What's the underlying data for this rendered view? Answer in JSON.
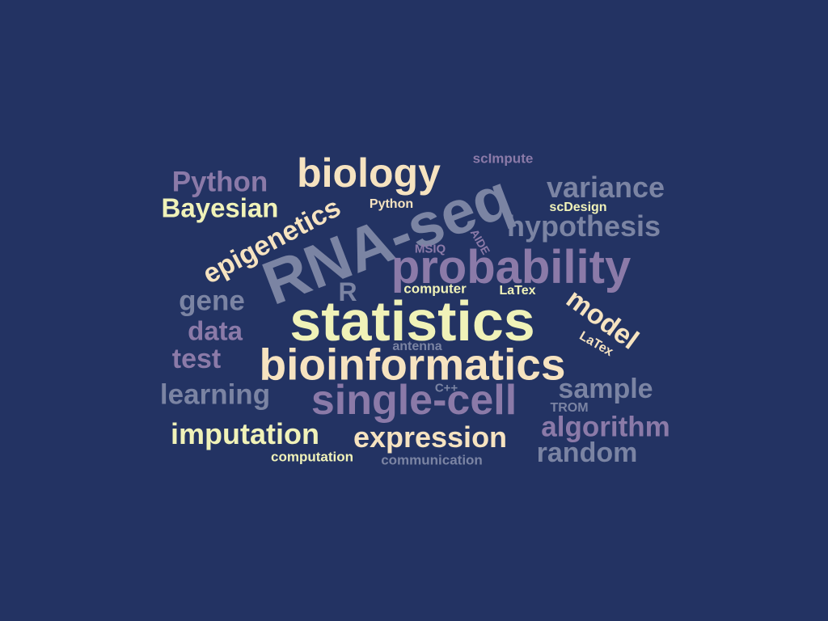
{
  "word_cloud": {
    "background": "#233363",
    "palette": [
      "#f0f2b8",
      "#f6e3c0",
      "#8b7aa8",
      "#7b84a3"
    ],
    "words": [
      {
        "id": "scimpute",
        "text": "scImpute"
      },
      {
        "id": "biology",
        "text": "biology"
      },
      {
        "id": "python-large",
        "text": "Python"
      },
      {
        "id": "variance",
        "text": "variance"
      },
      {
        "id": "bayesian",
        "text": "Bayesian"
      },
      {
        "id": "epigenetics",
        "text": "epigenetics"
      },
      {
        "id": "python-small",
        "text": "Python"
      },
      {
        "id": "rna-seq",
        "text": "RNA-seq"
      },
      {
        "id": "scdesign",
        "text": "scDesign"
      },
      {
        "id": "hypothesis",
        "text": "hypothesis"
      },
      {
        "id": "aide",
        "text": "AIDE"
      },
      {
        "id": "msiq",
        "text": "MSIQ"
      },
      {
        "id": "probability",
        "text": "probability"
      },
      {
        "id": "r",
        "text": "R"
      },
      {
        "id": "computer",
        "text": "computer"
      },
      {
        "id": "latex-flat",
        "text": "LaTex"
      },
      {
        "id": "gene",
        "text": "gene"
      },
      {
        "id": "model",
        "text": "model"
      },
      {
        "id": "statistics",
        "text": "statistics"
      },
      {
        "id": "data",
        "text": "data"
      },
      {
        "id": "latex-tilted",
        "text": "LaTex"
      },
      {
        "id": "antenna",
        "text": "antenna"
      },
      {
        "id": "test",
        "text": "test"
      },
      {
        "id": "bioinformatics",
        "text": "bioinformatics"
      },
      {
        "id": "sample",
        "text": "sample"
      },
      {
        "id": "cpp",
        "text": "C++"
      },
      {
        "id": "learning",
        "text": "learning"
      },
      {
        "id": "single-cell",
        "text": "single-cell"
      },
      {
        "id": "trom",
        "text": "TROM"
      },
      {
        "id": "algorithm",
        "text": "algorithm"
      },
      {
        "id": "imputation",
        "text": "imputation"
      },
      {
        "id": "expression",
        "text": "expression"
      },
      {
        "id": "random",
        "text": "random"
      },
      {
        "id": "computation",
        "text": "computation"
      },
      {
        "id": "communication",
        "text": "communication"
      }
    ]
  }
}
